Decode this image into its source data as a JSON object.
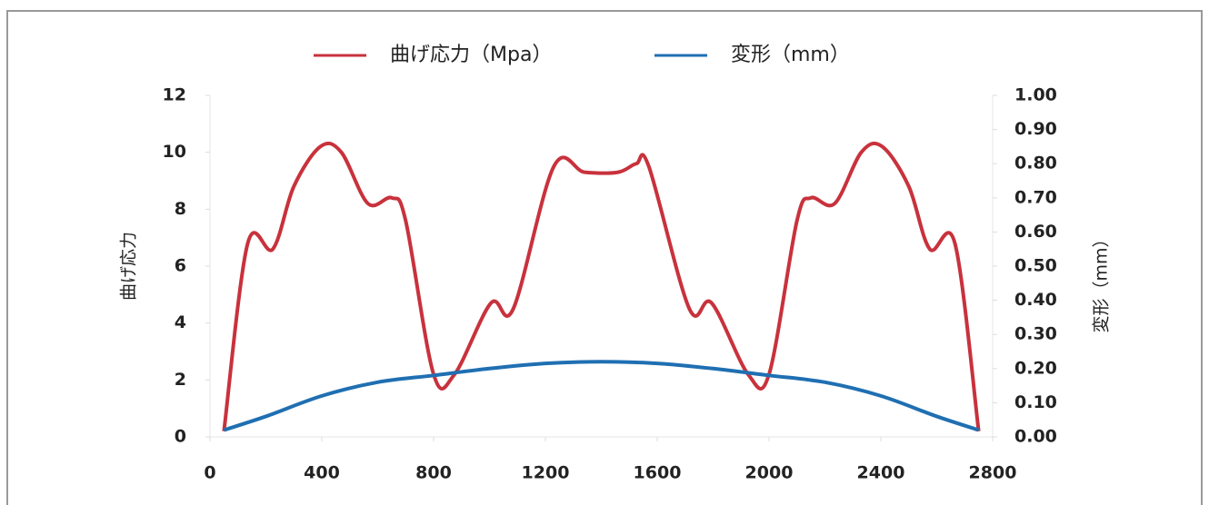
{
  "chart_data": {
    "type": "line",
    "x_label_left": "曲げ応力",
    "y2_label": "変形（mm）",
    "xlim": [
      0,
      2800
    ],
    "xticks": [
      0,
      400,
      800,
      1200,
      1600,
      2000,
      2400,
      2800
    ],
    "ylim": [
      0,
      12
    ],
    "yticks": [
      0,
      2,
      4,
      6,
      8,
      10,
      12
    ],
    "y2lim": [
      0,
      1
    ],
    "y2ticks": [
      {
        "value": 0,
        "label": "0.00"
      },
      {
        "value": 0.1,
        "label": "0.10"
      },
      {
        "value": 0.2,
        "label": "0.20"
      },
      {
        "value": 0.3,
        "label": "0.30"
      },
      {
        "value": 0.4,
        "label": "0.40"
      },
      {
        "value": 0.5,
        "label": "0.50"
      },
      {
        "value": 0.6,
        "label": "0.60"
      },
      {
        "value": 0.7,
        "label": "0.70"
      },
      {
        "value": 0.8,
        "label": "0.80"
      },
      {
        "value": 0.9,
        "label": "0.90"
      },
      {
        "value": 1,
        "label": "1.00"
      }
    ],
    "legend": "top",
    "series": [
      {
        "name": "曲げ応力（Mpa）",
        "color": "#c8323c",
        "x": [
          50,
          135,
          225,
          300,
          395,
          470,
          565,
          650,
          700,
          800,
          875,
          1005,
          1085,
          1230,
          1340,
          1460,
          1525,
          1570,
          1715,
          1795,
          1925,
          2000,
          2100,
          2150,
          2235,
          2330,
          2405,
          2500,
          2575,
          2665,
          2750
        ],
        "values": [
          0.2,
          6.8,
          6.6,
          8.8,
          10.2,
          10.0,
          8.2,
          8.4,
          7.6,
          2.2,
          2.2,
          4.7,
          4.5,
          9.5,
          9.3,
          9.3,
          9.6,
          9.5,
          4.5,
          4.7,
          2.2,
          2.2,
          7.6,
          8.4,
          8.2,
          10.0,
          10.2,
          8.8,
          6.6,
          6.8,
          0.2
        ]
      },
      {
        "name": "変形（mm）",
        "color": "#1f6fb2",
        "axis": "y2",
        "x": [
          50,
          200,
          400,
          600,
          800,
          1000,
          1200,
          1400,
          1600,
          1800,
          2000,
          2200,
          2400,
          2600,
          2750
        ],
        "values": [
          0.02,
          0.06,
          0.12,
          0.16,
          0.18,
          0.2,
          0.215,
          0.22,
          0.215,
          0.2,
          0.18,
          0.16,
          0.12,
          0.06,
          0.02
        ]
      }
    ]
  }
}
